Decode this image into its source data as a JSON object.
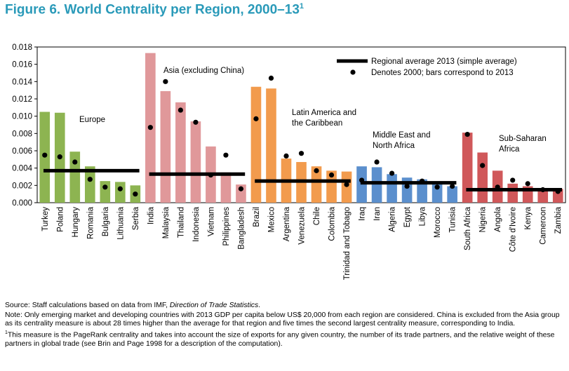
{
  "figure": {
    "title": "Figure 6. World Centrality per Region, 2000–13",
    "title_footnote_mark": "1"
  },
  "chart_data": {
    "type": "bar",
    "ylim": [
      0,
      0.018
    ],
    "yticks": [
      "0.000",
      "0.002",
      "0.004",
      "0.006",
      "0.008",
      "0.010",
      "0.012",
      "0.014",
      "0.016",
      "0.018"
    ],
    "legend": {
      "line_label": "Regional average 2013 (simple average)",
      "dot_label": "Denotes 2000; bars correspond to 2013",
      "placement": "top-right"
    },
    "series": [
      {
        "name": "2013",
        "kind": "bar"
      },
      {
        "name": "2000",
        "kind": "dot"
      }
    ],
    "groups": [
      {
        "name": "Europe",
        "label_lines": [
          "Europe"
        ],
        "color": "#8db451",
        "average_2013": 0.0037,
        "countries": [
          "Turkey",
          "Poland",
          "Hungary",
          "Romania",
          "Bulgaria",
          "Lithuania",
          "Serbia"
        ],
        "values_2013": [
          0.0105,
          0.0104,
          0.0059,
          0.0042,
          0.0025,
          0.0024,
          0.002
        ],
        "values_2000": [
          0.0055,
          0.0053,
          0.0047,
          0.0027,
          0.0018,
          0.0016,
          0.001
        ]
      },
      {
        "name": "Asia (excluding China)",
        "label_lines": [
          "Asia (excluding China)"
        ],
        "color": "#e0989a",
        "average_2013": 0.0033,
        "countries": [
          "India",
          "Malaysia",
          "Thailand",
          "Indonesia",
          "Vietnam",
          "Philippines",
          "Bangladesh"
        ],
        "values_2013": [
          0.0173,
          0.0129,
          0.0116,
          0.0094,
          0.0065,
          0.0035,
          0.0021
        ],
        "values_2000": [
          0.0087,
          0.014,
          0.0107,
          0.0093,
          0.0032,
          0.0055,
          0.0016
        ]
      },
      {
        "name": "Latin America and the Caribbean",
        "label_lines": [
          "Latin America and",
          "the Caribbean"
        ],
        "color": "#f29b4d",
        "average_2013": 0.0025,
        "countries": [
          "Brazil",
          "Mexico",
          "Argentina",
          "Venezuela",
          "Chile",
          "Colombia",
          "Trinidad and Tobago"
        ],
        "values_2013": [
          0.0134,
          0.0132,
          0.0051,
          0.0047,
          0.0042,
          0.0037,
          0.0036
        ],
        "values_2000": [
          0.0097,
          0.0144,
          0.0054,
          0.0057,
          0.0037,
          0.0032,
          0.0021
        ]
      },
      {
        "name": "Middle East and North Africa",
        "label_lines": [
          "Middle East and",
          "North Africa"
        ],
        "color": "#5b8fcd",
        "average_2013": 0.0023,
        "countries": [
          "Iraq",
          "Iran",
          "Algeria",
          "Egypt",
          "Libya",
          "Morocco",
          "Tunisia"
        ],
        "values_2013": [
          0.0042,
          0.0041,
          0.0033,
          0.0029,
          0.0027,
          0.0022,
          0.0019
        ],
        "values_2000": [
          0.0026,
          0.0047,
          0.0034,
          0.0019,
          0.0025,
          0.0018,
          0.0019
        ]
      },
      {
        "name": "Sub-Saharan Africa",
        "label_lines": [
          "Sub-Saharan",
          "Africa"
        ],
        "color": "#d0585a",
        "average_2013": 0.0015,
        "countries": [
          "South Africa",
          "Nigeria",
          "Angola",
          "Côte d'Ivoire",
          "Kenya",
          "Cameroon",
          "Zambia"
        ],
        "values_2013": [
          0.0081,
          0.0058,
          0.0037,
          0.0022,
          0.0019,
          0.0015,
          0.0016
        ],
        "values_2000": [
          0.0079,
          0.0043,
          0.0018,
          0.0026,
          0.0022,
          0.0015,
          0.0013
        ]
      }
    ]
  },
  "notes": {
    "source_prefix": "Source: Staff calculations based on data from IMF, ",
    "source_italic": "Direction of Trade Statistics",
    "source_suffix": ".",
    "note": "Note: Only emerging market and developing countries with 2013 GDP per capita below US$ 20,000 from each region are considered. China is excluded from the Asia group as its centrality measure is about 28 times higher than the average for that region and five times the second largest centrality measure, corresponding to India.",
    "footnote_mark": "1",
    "footnote": "This measure is the PageRank centrality and takes into account the size of exports for any given country, the number of its trade partners, and the relative weight of these partners in global trade (see Brin and Page 1998 for a description of the computation)."
  }
}
